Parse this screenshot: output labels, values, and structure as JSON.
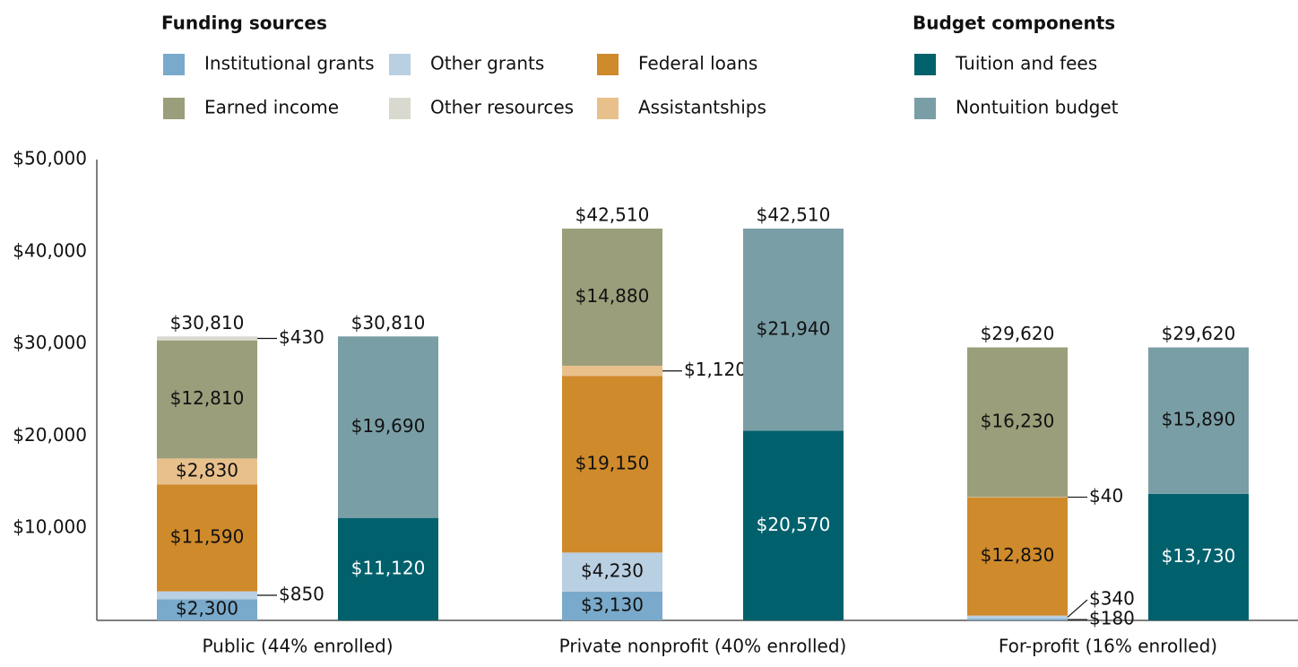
{
  "chart_data": {
    "type": "bar",
    "stacked": true,
    "categories": [
      "Public (44% enrolled)",
      "Private nonprofit (40% enrolled)",
      "For-profit (16% enrolled)"
    ],
    "ylim": [
      0,
      50000
    ],
    "yticks": [
      {
        "value": 10000,
        "label": "$10,000"
      },
      {
        "value": 20000,
        "label": "$20,000"
      },
      {
        "value": 30000,
        "label": "$30,000"
      },
      {
        "value": 40000,
        "label": "$40,000"
      },
      {
        "value": 50000,
        "label": "$50,000"
      }
    ],
    "funding": {
      "title": "Funding sources",
      "series": [
        {
          "name": "Institutional grants",
          "color": "#7aaacb",
          "values": [
            2300,
            3130,
            180
          ],
          "value_labels": [
            "$2,300",
            "$3,130",
            "$180"
          ]
        },
        {
          "name": "Other grants",
          "color": "#b9cfe2",
          "values": [
            850,
            4230,
            340
          ],
          "value_labels": [
            "$850",
            "$4,230",
            "$340"
          ]
        },
        {
          "name": "Federal loans",
          "color": "#cf8a2c",
          "values": [
            11590,
            19150,
            12830
          ],
          "value_labels": [
            "$11,590",
            "$19,150",
            "$12,830"
          ]
        },
        {
          "name": "Assistantships",
          "color": "#e8c08c",
          "values": [
            2830,
            1120,
            40
          ],
          "value_labels": [
            "$2,830",
            "$1,120",
            "$40"
          ]
        },
        {
          "name": "Earned income",
          "color": "#9a9e7a",
          "values": [
            12810,
            14880,
            16230
          ],
          "value_labels": [
            "$12,810",
            "$14,880",
            "$16,230"
          ]
        },
        {
          "name": "Other resources",
          "color": "#d9d9cf",
          "values": [
            430,
            null,
            null
          ],
          "value_labels": [
            "$430",
            null,
            null
          ]
        }
      ],
      "totals": {
        "values": [
          30810,
          42510,
          29620
        ],
        "value_labels": [
          "$30,810",
          "$42,510",
          "$29,620"
        ]
      }
    },
    "budget": {
      "title": "Budget components",
      "series": [
        {
          "name": "Tuition and fees",
          "color": "#00616d",
          "values": [
            11120,
            20570,
            13730
          ],
          "value_labels": [
            "$11,120",
            "$20,570",
            "$13,730"
          ]
        },
        {
          "name": "Nontuition budget",
          "color": "#7a9ea6",
          "values": [
            19690,
            21940,
            15890
          ],
          "value_labels": [
            "$19,690",
            "$21,940",
            "$15,890"
          ]
        }
      ],
      "totals": {
        "values": [
          30810,
          42510,
          29620
        ],
        "value_labels": [
          "$30,810",
          "$42,510",
          "$29,620"
        ]
      }
    }
  }
}
